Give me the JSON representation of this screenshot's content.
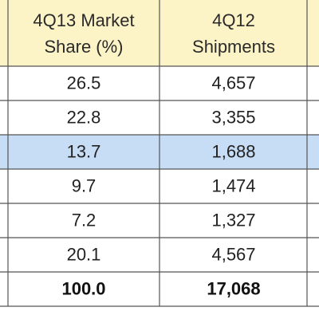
{
  "table": {
    "header": [
      [
        "4Q13 Market",
        "Share (%)"
      ],
      [
        "4Q12",
        "Shipments"
      ]
    ],
    "rows": [
      [
        "26.5",
        "4,657"
      ],
      [
        "22.8",
        "3,355"
      ],
      [
        "13.7",
        "1,688"
      ],
      [
        "9.7",
        "1,474"
      ],
      [
        "7.2",
        "1,327"
      ],
      [
        "20.1",
        "4,567"
      ]
    ],
    "total": [
      "100.0",
      "17,068"
    ],
    "highlighted_row": 2
  }
}
